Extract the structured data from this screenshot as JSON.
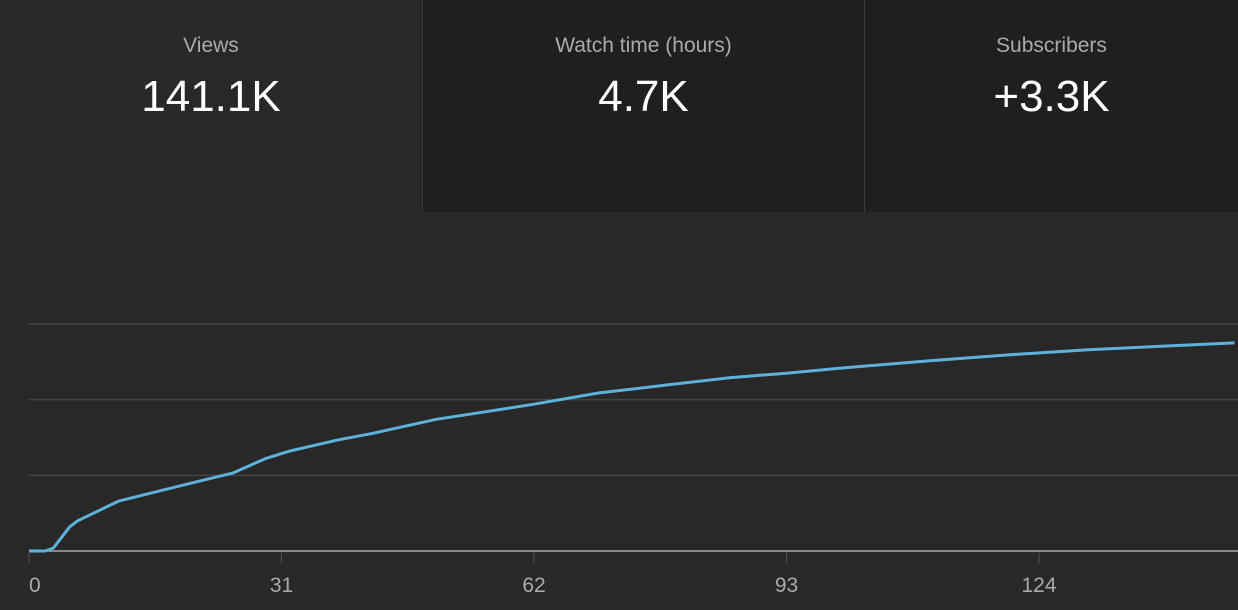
{
  "metrics": [
    {
      "label": "Views",
      "value": "141.1K"
    },
    {
      "label": "Watch time (hours)",
      "value": "4.7K"
    },
    {
      "label": "Subscribers",
      "value": "+3.3K"
    }
  ],
  "selected_metric": "Views",
  "chart_data": {
    "type": "line",
    "title": "",
    "xlabel": "",
    "ylabel": "",
    "x_ticks": [
      "0",
      "31",
      "62",
      "93",
      "124"
    ],
    "xlim": [
      0,
      148
    ],
    "ylim": [
      0,
      3
    ],
    "y_gridlines": [
      1,
      2,
      3
    ],
    "y_units_note": "no y-axis labels shown; values in gridline units",
    "grid": true,
    "line_color": "#5db2dc",
    "series": [
      {
        "x": [
          0,
          2,
          3,
          5,
          6,
          11,
          20,
          25,
          29,
          32,
          38,
          42,
          50,
          56,
          62,
          70,
          78,
          86,
          93,
          100,
          110,
          120,
          130,
          140,
          148
        ],
        "y": [
          0,
          0,
          0.04,
          0.32,
          0.4,
          0.66,
          0.9,
          1.03,
          1.22,
          1.32,
          1.47,
          1.55,
          1.74,
          1.84,
          1.94,
          2.09,
          2.19,
          2.29,
          2.35,
          2.42,
          2.51,
          2.59,
          2.66,
          2.71,
          2.75
        ]
      }
    ]
  }
}
